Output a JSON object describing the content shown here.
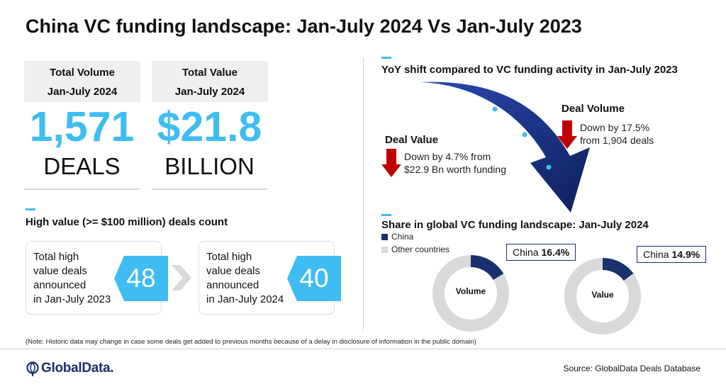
{
  "title": "China VC funding landscape: Jan-July 2024 Vs Jan-July 2023",
  "kpis": {
    "volume": {
      "head1": "Total Volume",
      "head2": "Jan-July 2024",
      "value": "1,571",
      "unit": "DEALS"
    },
    "value": {
      "head1": "Total Value",
      "head2": "Jan-July 2024",
      "value": "$21.8",
      "unit": "BILLION"
    }
  },
  "high_value": {
    "heading": "High value (>= $100 million) deals count",
    "cards": [
      {
        "line1": "Total high",
        "line2": "value deals",
        "line3": "announced",
        "line4": "in Jan-July 2023",
        "count": "48"
      },
      {
        "line1": "Total high",
        "line2": "value deals",
        "line3": "announced",
        "line4": "in Jan-July 2024",
        "count": "40"
      }
    ]
  },
  "yoy": {
    "heading": "YoY shift compared to VC funding activity in Jan-July 2023",
    "deal_volume": {
      "title": "Deal Volume",
      "line1": "Down by 17.5%",
      "line2": "from 1,904 deals",
      "change_pct": -17.5,
      "prior": 1904
    },
    "deal_value": {
      "title": "Deal Value",
      "line1": "Down by 4.7% from",
      "line2": "$22.9 Bn worth funding",
      "change_pct": -4.7,
      "prior_bn": 22.9
    }
  },
  "share": {
    "heading": "Share in global VC funding landscape: Jan-July 2024",
    "legend": {
      "china": "China",
      "other": "Other countries"
    },
    "volume_label": "Volume",
    "value_label": "Value",
    "volume_callout_name": "China",
    "volume_callout_pct": "16.4%",
    "value_callout_name": "China",
    "value_callout_pct": "14.9%"
  },
  "chart_data": [
    {
      "type": "pie",
      "title": "Volume",
      "categories": [
        "China",
        "Other countries"
      ],
      "values": [
        16.4,
        83.6
      ]
    },
    {
      "type": "pie",
      "title": "Value",
      "categories": [
        "China",
        "Other countries"
      ],
      "values": [
        14.9,
        85.1
      ]
    }
  ],
  "colors": {
    "accent": "#3fbdf2",
    "navy": "#1a2f6e",
    "down_red": "#c00000",
    "grey": "#d9d9d9"
  },
  "footnote": "(Note:  Historic data may change in case some deals get added to previous months because of a delay in disclosure of information in the public domain)",
  "logo_text": "GlobalData.",
  "source": "Source:  GlobalData Deals Database"
}
